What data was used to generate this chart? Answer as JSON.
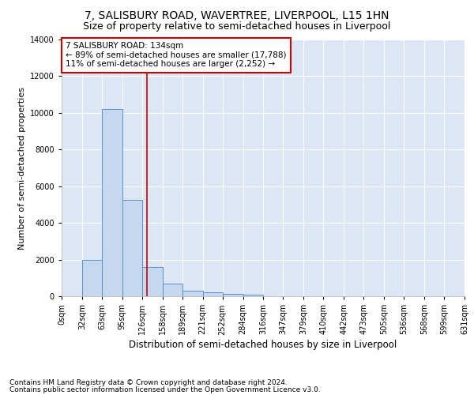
{
  "title": "7, SALISBURY ROAD, WAVERTREE, LIVERPOOL, L15 1HN",
  "subtitle": "Size of property relative to semi-detached houses in Liverpool",
  "xlabel": "Distribution of semi-detached houses by size in Liverpool",
  "ylabel": "Number of semi-detached properties",
  "footnote1": "Contains HM Land Registry data © Crown copyright and database right 2024.",
  "footnote2": "Contains public sector information licensed under the Open Government Licence v3.0.",
  "annotation_line1": "7 SALISBURY ROAD: 134sqm",
  "annotation_line2": "← 89% of semi-detached houses are smaller (17,788)",
  "annotation_line3": "11% of semi-detached houses are larger (2,252) →",
  "bar_color": "#c5d8ef",
  "bar_edge_color": "#5b8fc9",
  "vline_color": "#cc0000",
  "vline_x": 134,
  "bins": [
    0,
    32,
    63,
    95,
    126,
    158,
    189,
    221,
    252,
    284,
    316,
    347,
    379,
    410,
    442,
    473,
    505,
    536,
    568,
    599,
    631
  ],
  "values": [
    0,
    2000,
    10200,
    5250,
    1600,
    680,
    300,
    200,
    130,
    100,
    0,
    0,
    0,
    0,
    0,
    0,
    0,
    0,
    0,
    0
  ],
  "ylim": [
    0,
    14000
  ],
  "yticks": [
    0,
    2000,
    4000,
    6000,
    8000,
    10000,
    12000,
    14000
  ],
  "bg_color": "#dce6f4",
  "grid_color": "#ffffff",
  "title_fontsize": 10,
  "subtitle_fontsize": 9,
  "xlabel_fontsize": 8.5,
  "ylabel_fontsize": 8,
  "tick_fontsize": 7,
  "annot_fontsize": 7.5,
  "footnote_fontsize": 6.5
}
